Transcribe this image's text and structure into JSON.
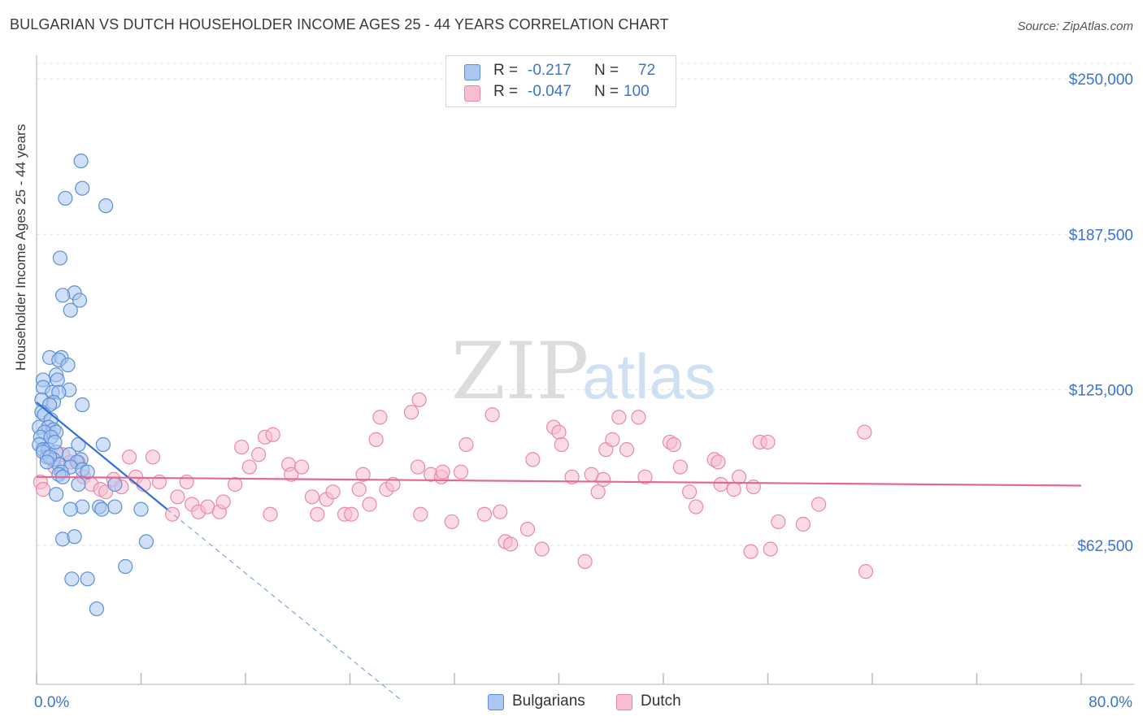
{
  "title": "BULGARIAN VS DUTCH HOUSEHOLDER INCOME AGES 25 - 44 YEARS CORRELATION CHART",
  "source": "Source: ZipAtlas.com",
  "watermark": {
    "zip": "ZIP",
    "atlas": "atlas"
  },
  "legend": {
    "rows": [
      {
        "r_label": "R =",
        "r_value": "-0.217",
        "n_label": "N =",
        "n_value": "72",
        "color": "#a9c7f0",
        "stroke": "#5b8fd6"
      },
      {
        "r_label": "R =",
        "r_value": "-0.047",
        "n_label": "N =",
        "n_value": "100",
        "color": "#f7bdd0",
        "stroke": "#e889a9"
      }
    ]
  },
  "bottom_legend": [
    {
      "label": "Bulgarians",
      "color": "#a9c7f0",
      "stroke": "#5b8fd6"
    },
    {
      "label": "Dutch",
      "color": "#f7bdd0",
      "stroke": "#e889a9"
    }
  ],
  "chart_data": {
    "type": "scatter",
    "title": "BULGARIAN VS DUTCH HOUSEHOLDER INCOME AGES 25 - 44 YEARS CORRELATION CHART",
    "xlabel": "",
    "ylabel": "Householder Income Ages 25 - 44 years",
    "xlim": [
      0,
      80
    ],
    "ylim": [
      0,
      262500
    ],
    "x_tick_labels": [
      "0.0%",
      "80.0%"
    ],
    "y_ticks": [
      62500,
      125000,
      187500,
      250000
    ],
    "y_tick_labels": [
      "$62,500",
      "$125,000",
      "$187,500",
      "$250,000"
    ],
    "grid": true,
    "series": [
      {
        "name": "Bulgarians",
        "color": "#5b8fd6",
        "fill": "#a9c7f0",
        "trend": {
          "x0": 0,
          "y0": 120000,
          "x1": 10,
          "y1": 77000,
          "dashed_to": {
            "x": 28,
            "y": 0
          }
        },
        "points": [
          [
            3.4,
            217000
          ],
          [
            3.5,
            206000
          ],
          [
            2.2,
            202000
          ],
          [
            5.3,
            199000
          ],
          [
            1.8,
            178000
          ],
          [
            2.9,
            164000
          ],
          [
            2.0,
            163000
          ],
          [
            3.3,
            161000
          ],
          [
            2.6,
            157000
          ],
          [
            1.0,
            138000
          ],
          [
            1.9,
            138000
          ],
          [
            1.7,
            137000
          ],
          [
            2.4,
            135000
          ],
          [
            1.5,
            131000
          ],
          [
            0.5,
            129000
          ],
          [
            1.6,
            129000
          ],
          [
            0.5,
            126000
          ],
          [
            2.5,
            125000
          ],
          [
            1.2,
            124000
          ],
          [
            1.7,
            124000
          ],
          [
            0.4,
            121000
          ],
          [
            1.3,
            120000
          ],
          [
            1.0,
            119000
          ],
          [
            3.5,
            119000
          ],
          [
            0.4,
            116000
          ],
          [
            0.6,
            115000
          ],
          [
            1.1,
            113000
          ],
          [
            0.2,
            110000
          ],
          [
            0.9,
            110000
          ],
          [
            1.3,
            109000
          ],
          [
            0.6,
            108000
          ],
          [
            1.5,
            108000
          ],
          [
            0.3,
            106000
          ],
          [
            1.1,
            106000
          ],
          [
            0.2,
            103000
          ],
          [
            3.2,
            103000
          ],
          [
            5.1,
            103000
          ],
          [
            0.5,
            101000
          ],
          [
            0.9,
            101000
          ],
          [
            1.5,
            100000
          ],
          [
            2.5,
            99000
          ],
          [
            0.8,
            98000
          ],
          [
            1.3,
            97000
          ],
          [
            3.4,
            97000
          ],
          [
            3.1,
            96000
          ],
          [
            1.7,
            95000
          ],
          [
            2.6,
            94000
          ],
          [
            3.5,
            93000
          ],
          [
            1.9,
            92000
          ],
          [
            3.9,
            92000
          ],
          [
            1.7,
            91000
          ],
          [
            2.0,
            90000
          ],
          [
            3.2,
            87000
          ],
          [
            1.5,
            83000
          ],
          [
            6.0,
            87000
          ],
          [
            3.5,
            78000
          ],
          [
            6.0,
            78000
          ],
          [
            4.8,
            78000
          ],
          [
            2.6,
            77000
          ],
          [
            5.0,
            77000
          ],
          [
            8.0,
            77000
          ],
          [
            2.0,
            65000
          ],
          [
            2.9,
            66000
          ],
          [
            8.4,
            64000
          ],
          [
            2.7,
            49000
          ],
          [
            3.9,
            49000
          ],
          [
            6.8,
            54000
          ],
          [
            4.6,
            37000
          ],
          [
            0.5,
            100000
          ],
          [
            1.0,
            98000
          ],
          [
            1.4,
            104000
          ],
          [
            0.8,
            96000
          ]
        ]
      },
      {
        "name": "Dutch",
        "color": "#e37aa1",
        "fill": "#f7bdd0",
        "trend": {
          "x0": 0,
          "y0": 90000,
          "x1": 80,
          "y1": 86500
        },
        "points": [
          [
            0.3,
            88000
          ],
          [
            0.5,
            85000
          ],
          [
            1.4,
            94000
          ],
          [
            2.0,
            99000
          ],
          [
            2.6,
            96000
          ],
          [
            3.2,
            96000
          ],
          [
            3.6,
            90000
          ],
          [
            4.2,
            87000
          ],
          [
            4.9,
            85000
          ],
          [
            5.3,
            84000
          ],
          [
            5.9,
            89000
          ],
          [
            6.5,
            86000
          ],
          [
            7.1,
            98000
          ],
          [
            7.6,
            90000
          ],
          [
            8.2,
            87000
          ],
          [
            8.9,
            98000
          ],
          [
            9.4,
            88000
          ],
          [
            10.4,
            75000
          ],
          [
            10.8,
            82000
          ],
          [
            11.5,
            88000
          ],
          [
            11.9,
            79000
          ],
          [
            12.4,
            76000
          ],
          [
            13.1,
            78000
          ],
          [
            14.0,
            76000
          ],
          [
            14.3,
            80000
          ],
          [
            15.2,
            87000
          ],
          [
            15.7,
            102000
          ],
          [
            16.3,
            94000
          ],
          [
            17.0,
            99000
          ],
          [
            17.5,
            106000
          ],
          [
            18.1,
            107000
          ],
          [
            17.9,
            75000
          ],
          [
            19.3,
            95000
          ],
          [
            19.5,
            91000
          ],
          [
            20.3,
            94000
          ],
          [
            21.1,
            82000
          ],
          [
            21.5,
            75000
          ],
          [
            22.2,
            81000
          ],
          [
            22.7,
            84000
          ],
          [
            23.6,
            75000
          ],
          [
            24.1,
            75000
          ],
          [
            24.7,
            85000
          ],
          [
            25.0,
            91000
          ],
          [
            25.5,
            79000
          ],
          [
            26.0,
            105000
          ],
          [
            26.3,
            114000
          ],
          [
            26.8,
            85000
          ],
          [
            27.3,
            87000
          ],
          [
            28.7,
            116000
          ],
          [
            29.3,
            121000
          ],
          [
            29.2,
            94000
          ],
          [
            29.4,
            75000
          ],
          [
            30.2,
            91000
          ],
          [
            31.0,
            90000
          ],
          [
            31.1,
            92000
          ],
          [
            31.8,
            72000
          ],
          [
            32.5,
            92000
          ],
          [
            32.9,
            103000
          ],
          [
            34.3,
            75000
          ],
          [
            34.9,
            115000
          ],
          [
            35.5,
            76000
          ],
          [
            35.9,
            64000
          ],
          [
            36.3,
            63000
          ],
          [
            37.6,
            69000
          ],
          [
            38.0,
            97000
          ],
          [
            38.7,
            61000
          ],
          [
            39.6,
            110000
          ],
          [
            40.0,
            108000
          ],
          [
            40.2,
            103000
          ],
          [
            41.0,
            90000
          ],
          [
            42.0,
            56000
          ],
          [
            42.5,
            91000
          ],
          [
            43.0,
            84000
          ],
          [
            43.4,
            89000
          ],
          [
            43.6,
            101000
          ],
          [
            44.1,
            105000
          ],
          [
            44.6,
            114000
          ],
          [
            45.2,
            101000
          ],
          [
            46.1,
            114000
          ],
          [
            46.6,
            90000
          ],
          [
            48.5,
            104000
          ],
          [
            48.8,
            103000
          ],
          [
            49.3,
            94000
          ],
          [
            50.0,
            84000
          ],
          [
            50.5,
            78000
          ],
          [
            51.9,
            97000
          ],
          [
            52.2,
            96000
          ],
          [
            52.4,
            87000
          ],
          [
            53.4,
            85000
          ],
          [
            53.8,
            90000
          ],
          [
            54.7,
            60000
          ],
          [
            55.4,
            104000
          ],
          [
            56.0,
            104000
          ],
          [
            56.2,
            61000
          ],
          [
            56.8,
            72000
          ],
          [
            58.7,
            71000
          ],
          [
            59.9,
            79000
          ],
          [
            63.4,
            108000
          ],
          [
            63.5,
            52000
          ],
          [
            54.9,
            86000
          ]
        ]
      }
    ]
  }
}
